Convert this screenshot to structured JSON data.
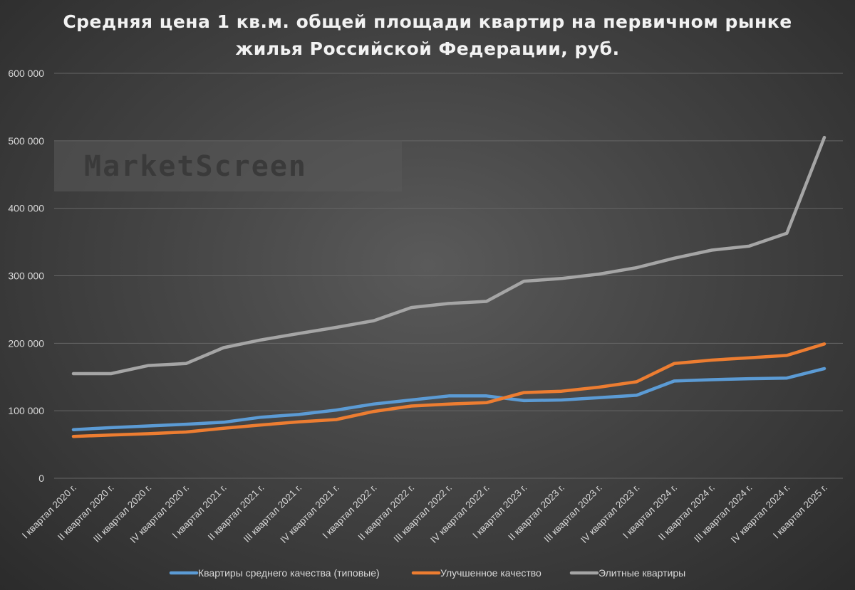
{
  "chart_data": {
    "type": "line",
    "title_line1": "Средняя цена 1 кв.м. общей площади квартир на первичном рынке",
    "title_line2": "жилья Российской Федерации, руб.",
    "watermark": "MarketScreen",
    "ylim": [
      0,
      600000
    ],
    "yticks": [
      0,
      100000,
      200000,
      300000,
      400000,
      500000,
      600000
    ],
    "ytick_labels": [
      "0",
      "100 000",
      "200 000",
      "300 000",
      "400 000",
      "500 000",
      "600 000"
    ],
    "grid": true,
    "legend_position": "bottom",
    "categories": [
      "I квартал 2020 г.",
      "II квартал 2020 г.",
      "III квартал 2020 г.",
      "IV квартал 2020 г.",
      "I квартал 2021 г.",
      "II квартал 2021 г.",
      "III квартал 2021 г.",
      "IV квартал 2021 г.",
      "I квартал 2022 г.",
      "II квартал 2022 г.",
      "III квартал 2022 г.",
      "IV квартал 2022 г.",
      "I квартал 2023 г.",
      "II квартал 2023 г.",
      "III квартал 2023 г.",
      "IV квартал 2023 г.",
      "I квартал 2024 г.",
      "II квартал 2024 г.",
      "III квартал 2024 г.",
      "IV квартал 2024 г.",
      "I квартал 2025 г."
    ],
    "series": [
      {
        "name": "Квартиры среднего качества (типовые)",
        "color": "#5b9bd5",
        "values": [
          72000,
          75000,
          77500,
          80000,
          83000,
          90500,
          94500,
          101000,
          110000,
          116000,
          122000,
          122000,
          115000,
          116000,
          119500,
          123000,
          144000,
          146000,
          147500,
          148500,
          162500
        ]
      },
      {
        "name": "Улучшенное качество",
        "color": "#ed7d31",
        "values": [
          62000,
          64000,
          66000,
          68500,
          74000,
          79000,
          83500,
          87000,
          99000,
          107000,
          110000,
          112000,
          127000,
          129000,
          135000,
          143000,
          170000,
          175000,
          178500,
          182000,
          199000
        ]
      },
      {
        "name": "Элитные квартиры",
        "color": "#a5a5a5",
        "values": [
          155000,
          155000,
          167000,
          170000,
          193500,
          205000,
          214500,
          223500,
          233500,
          253000,
          259000,
          262000,
          292000,
          296000,
          302500,
          312000,
          326000,
          338000,
          344000,
          363000,
          505000
        ]
      }
    ]
  }
}
